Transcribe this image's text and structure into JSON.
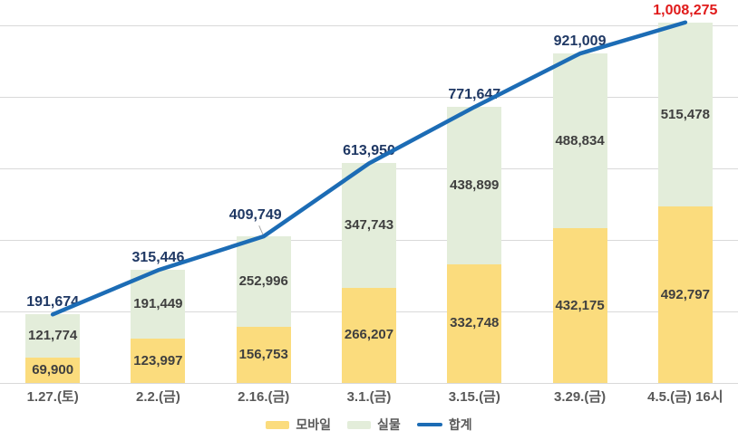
{
  "chart_data": {
    "type": "bar",
    "subtype": "stacked-bars-with-total-line",
    "title": "",
    "xlabel": "",
    "ylabel": "",
    "categories": [
      "1.27.(토)",
      "2.2.(금)",
      "2.16.(금)",
      "3.1.(금)",
      "3.15.(금)",
      "3.29.(금)",
      "4.5.(금) 16시"
    ],
    "series": [
      {
        "name": "모바일",
        "type": "bar",
        "color": "#FBDC7D",
        "values": [
          69900,
          123997,
          156753,
          266207,
          332748,
          432175,
          492797
        ]
      },
      {
        "name": "실물",
        "type": "bar",
        "color": "#E3EDDA",
        "values": [
          121774,
          191449,
          252996,
          347743,
          438899,
          488834,
          515478
        ]
      },
      {
        "name": "합계",
        "type": "line",
        "color": "#1C6CB5",
        "values": [
          191674,
          315446,
          409749,
          613950,
          771647,
          921009,
          1008275
        ]
      }
    ],
    "value_label_format": "thousands-comma",
    "ylim": [
      0,
      1070000
    ],
    "gridline_step": 200000,
    "gridline_max": 1000000,
    "grid": true,
    "legend_position": "bottom",
    "annotations": {
      "callout_index": 2,
      "highlighted_final_total": "1,008,275"
    },
    "styles": {
      "total_label_color": "#1F3864",
      "final_total_label_color": "#E01A1A",
      "bar_label_color": "#3F3F3F",
      "axis_label_color": "#595959",
      "legend_label_color": "#595959",
      "gridline_color": "#D9D9D9",
      "line_color": "#1C6CB5",
      "callout_leader_color": "#A6A6A6",
      "background": "#FFFFFF"
    }
  }
}
